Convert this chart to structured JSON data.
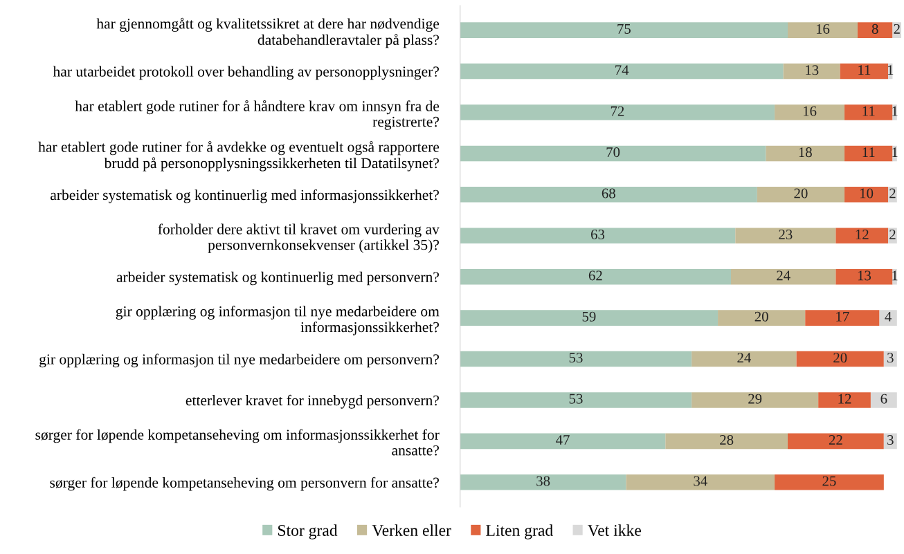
{
  "chart_data": {
    "type": "bar",
    "orientation": "horizontal",
    "stacked": true,
    "data_labels": true,
    "legend": "bottom",
    "grid": false,
    "tick_labels": "y",
    "categories": [
      "har gjennomgått og kvalitetssikret at dere har nødvendige\ndatabehandleravtaler på plass?",
      "har utarbeidet protokoll over behandling av personopplysninger?",
      "har etablert gode rutiner for å håndtere krav om innsyn fra de\nregistrerte?",
      "har etablert gode rutiner for å avdekke og eventuelt også rapportere\nbrudd på personopplysningssikkerheten til Datatilsynet?",
      "arbeider systematisk og kontinuerlig med informasjonssikkerhet?",
      "forholder dere aktivt til kravet om vurdering av\npersonvernkonsekvenser (artikkel 35)?",
      "arbeider systematisk og kontinuerlig med personvern?",
      "gir opplæring og informasjon til nye medarbeidere om\ninformasjonssikkerhet?",
      "gir opplæring og informasjon til nye medarbeidere om personvern?",
      "etterlever kravet for innebygd personvern?",
      "sørger for løpende kompetanseheving om informasjonssikkerhet for\nansatte?",
      "sørger for løpende kompetanseheving om personvern for ansatte?"
    ],
    "series": [
      {
        "name": "Stor grad",
        "color": "#a9c9b9",
        "values": [
          75,
          74,
          72,
          70,
          68,
          63,
          62,
          59,
          53,
          53,
          47,
          38
        ]
      },
      {
        "name": "Verken eller",
        "color": "#c5bb96",
        "values": [
          16,
          13,
          16,
          18,
          20,
          23,
          24,
          20,
          24,
          29,
          28,
          34
        ]
      },
      {
        "name": "Liten grad",
        "color": "#e0643d",
        "values": [
          8,
          11,
          11,
          11,
          10,
          12,
          13,
          17,
          20,
          12,
          22,
          25
        ]
      },
      {
        "name": "Vet ikke",
        "color": "#d9d9d9",
        "values": [
          2,
          1,
          1,
          1,
          2,
          2,
          1,
          4,
          3,
          6,
          3,
          null
        ]
      }
    ]
  }
}
